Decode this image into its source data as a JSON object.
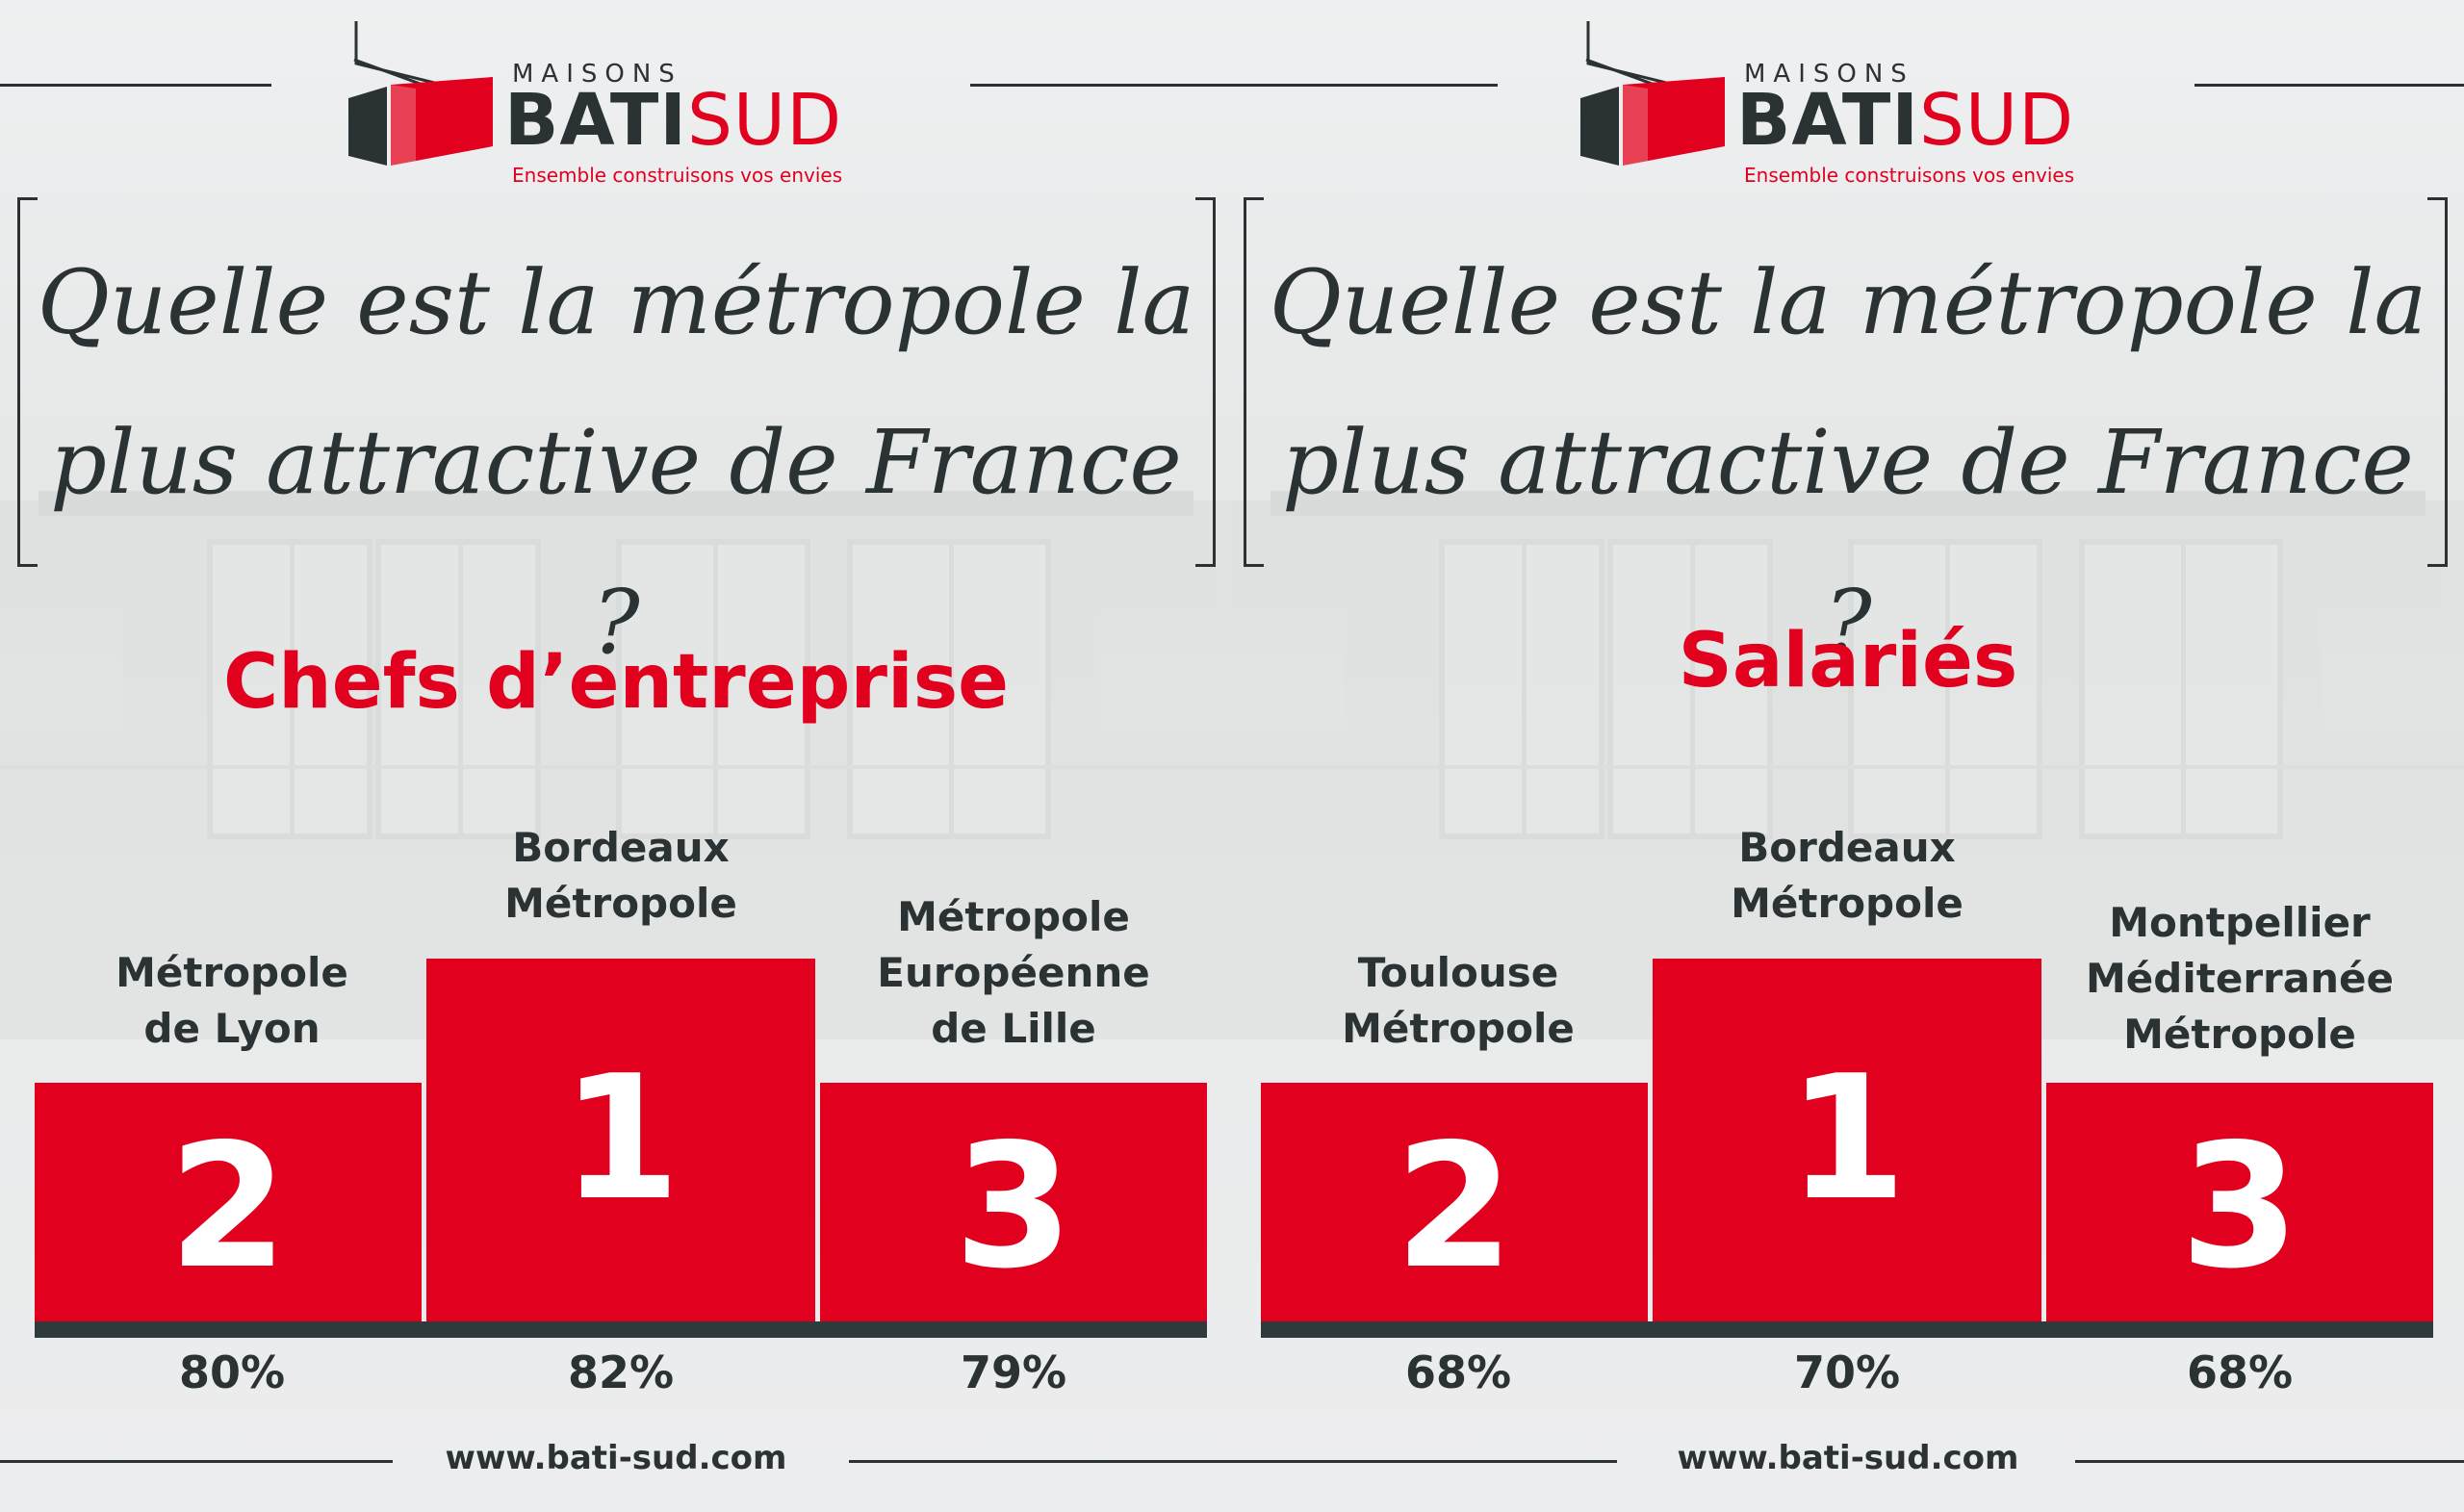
{
  "logo": {
    "maisons": "MAISONS",
    "bati": "BATI",
    "sud": "SUD",
    "tagline": "Ensemble construisons vos envies",
    "icon": "house-logo-icon"
  },
  "question": {
    "line1": "Quelle est la métropole la",
    "line2": "plus attractive de France ?"
  },
  "panels": [
    {
      "title": "Chefs d’entreprise",
      "podium": [
        {
          "rank": "2",
          "city": [
            "Métropole",
            "de Lyon"
          ],
          "pct": "80%"
        },
        {
          "rank": "1",
          "city": [
            "Bordeaux",
            "Métropole"
          ],
          "pct": "82%"
        },
        {
          "rank": "3",
          "city": [
            "Métropole",
            "Européenne",
            "de Lille"
          ],
          "pct": "79%"
        }
      ]
    },
    {
      "title": "Salariés",
      "podium": [
        {
          "rank": "2",
          "city": [
            "Toulouse",
            "Métropole"
          ],
          "pct": "68%"
        },
        {
          "rank": "1",
          "city": [
            "Bordeaux",
            "Métropole"
          ],
          "pct": "70%"
        },
        {
          "rank": "3",
          "city": [
            "Montpellier",
            "Méditerranée",
            "Métropole"
          ],
          "pct": "68%"
        }
      ]
    }
  ],
  "footer": {
    "url": "www.bati-sud.com"
  },
  "colors": {
    "brand_red": "#e1001d",
    "dark": "#2a3234"
  }
}
